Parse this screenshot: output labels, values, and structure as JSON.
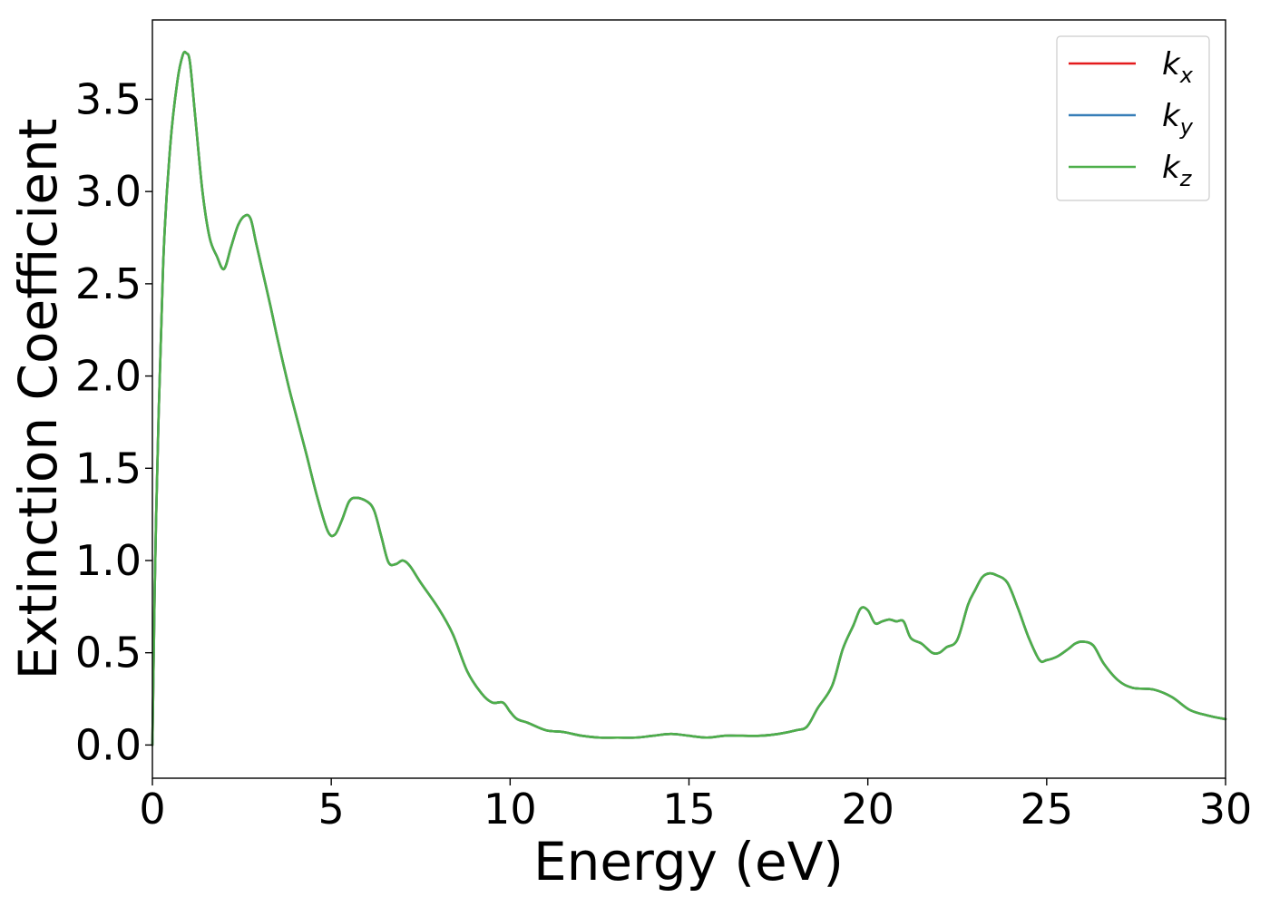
{
  "chart_data": {
    "type": "line",
    "xlabel": "Energy (eV)",
    "ylabel": "Extinction Coefficient",
    "xlim": [
      0,
      30
    ],
    "ylim": [
      -0.18,
      3.93
    ],
    "xticks": [
      0,
      5,
      10,
      15,
      20,
      25,
      30
    ],
    "xtick_labels": [
      "0",
      "5",
      "10",
      "15",
      "20",
      "25",
      "30"
    ],
    "yticks": [
      0.0,
      0.5,
      1.0,
      1.5,
      2.0,
      2.5,
      3.0,
      3.5
    ],
    "ytick_labels": [
      "0.0",
      "0.5",
      "1.0",
      "1.5",
      "2.0",
      "2.5",
      "3.0",
      "3.5"
    ],
    "grid": false,
    "legend_position": "top-right",
    "x": [
      0,
      0.1,
      0.3,
      0.5,
      0.7,
      0.85,
      0.95,
      1.05,
      1.2,
      1.4,
      1.6,
      1.8,
      2.0,
      2.2,
      2.4,
      2.6,
      2.75,
      2.9,
      3.1,
      3.3,
      3.5,
      3.8,
      4.0,
      4.3,
      4.6,
      4.9,
      5.1,
      5.3,
      5.5,
      5.7,
      6.0,
      6.2,
      6.4,
      6.6,
      6.8,
      7.0,
      7.2,
      7.5,
      8.0,
      8.4,
      8.8,
      9.2,
      9.5,
      9.8,
      10.0,
      10.2,
      10.5,
      11.0,
      11.5,
      12.0,
      12.5,
      13.0,
      13.5,
      14.0,
      14.5,
      15.0,
      15.5,
      16.0,
      16.5,
      17.0,
      17.5,
      18.0,
      18.3,
      18.6,
      19.0,
      19.3,
      19.6,
      19.8,
      20.0,
      20.2,
      20.4,
      20.6,
      20.8,
      21.0,
      21.2,
      21.5,
      21.8,
      22.0,
      22.2,
      22.5,
      22.8,
      23.0,
      23.2,
      23.4,
      23.6,
      23.9,
      24.2,
      24.5,
      24.8,
      25.0,
      25.3,
      25.6,
      25.8,
      26.0,
      26.3,
      26.6,
      27.0,
      27.4,
      28.0,
      28.5,
      29.0,
      29.5,
      30.0
    ],
    "series": [
      {
        "name": "k_x",
        "label_base": "k",
        "label_sub": "x",
        "color": "#e41a1c",
        "values": [
          0.0,
          1.2,
          2.6,
          3.25,
          3.6,
          3.74,
          3.75,
          3.7,
          3.4,
          3.0,
          2.75,
          2.65,
          2.58,
          2.7,
          2.82,
          2.87,
          2.85,
          2.72,
          2.55,
          2.38,
          2.2,
          1.95,
          1.8,
          1.58,
          1.35,
          1.16,
          1.14,
          1.22,
          1.32,
          1.34,
          1.32,
          1.27,
          1.13,
          0.99,
          0.98,
          1.0,
          0.97,
          0.88,
          0.74,
          0.6,
          0.4,
          0.28,
          0.23,
          0.23,
          0.18,
          0.14,
          0.12,
          0.08,
          0.07,
          0.05,
          0.04,
          0.04,
          0.04,
          0.05,
          0.06,
          0.05,
          0.04,
          0.05,
          0.05,
          0.05,
          0.06,
          0.08,
          0.1,
          0.2,
          0.32,
          0.52,
          0.65,
          0.74,
          0.73,
          0.66,
          0.67,
          0.68,
          0.67,
          0.67,
          0.58,
          0.55,
          0.5,
          0.5,
          0.53,
          0.57,
          0.76,
          0.84,
          0.91,
          0.93,
          0.92,
          0.88,
          0.74,
          0.58,
          0.46,
          0.46,
          0.48,
          0.52,
          0.55,
          0.56,
          0.54,
          0.44,
          0.35,
          0.31,
          0.3,
          0.26,
          0.19,
          0.16,
          0.14
        ]
      },
      {
        "name": "k_y",
        "label_base": "k",
        "label_sub": "y",
        "color": "#377eb8",
        "values": [
          0.0,
          1.2,
          2.6,
          3.25,
          3.6,
          3.74,
          3.75,
          3.7,
          3.4,
          3.0,
          2.75,
          2.65,
          2.58,
          2.7,
          2.82,
          2.87,
          2.85,
          2.72,
          2.55,
          2.38,
          2.2,
          1.95,
          1.8,
          1.58,
          1.35,
          1.16,
          1.14,
          1.22,
          1.32,
          1.34,
          1.32,
          1.27,
          1.13,
          0.99,
          0.98,
          1.0,
          0.97,
          0.88,
          0.74,
          0.6,
          0.4,
          0.28,
          0.23,
          0.23,
          0.18,
          0.14,
          0.12,
          0.08,
          0.07,
          0.05,
          0.04,
          0.04,
          0.04,
          0.05,
          0.06,
          0.05,
          0.04,
          0.05,
          0.05,
          0.05,
          0.06,
          0.08,
          0.1,
          0.2,
          0.32,
          0.52,
          0.65,
          0.74,
          0.73,
          0.66,
          0.67,
          0.68,
          0.67,
          0.67,
          0.58,
          0.55,
          0.5,
          0.5,
          0.53,
          0.57,
          0.76,
          0.84,
          0.91,
          0.93,
          0.92,
          0.88,
          0.74,
          0.58,
          0.46,
          0.46,
          0.48,
          0.52,
          0.55,
          0.56,
          0.54,
          0.44,
          0.35,
          0.31,
          0.3,
          0.26,
          0.19,
          0.16,
          0.14
        ]
      },
      {
        "name": "k_z",
        "label_base": "k",
        "label_sub": "z",
        "color": "#4daf4a",
        "values": [
          0.0,
          1.2,
          2.6,
          3.25,
          3.6,
          3.74,
          3.75,
          3.7,
          3.4,
          3.0,
          2.75,
          2.65,
          2.58,
          2.7,
          2.82,
          2.87,
          2.85,
          2.72,
          2.55,
          2.38,
          2.2,
          1.95,
          1.8,
          1.58,
          1.35,
          1.16,
          1.14,
          1.22,
          1.32,
          1.34,
          1.32,
          1.27,
          1.13,
          0.99,
          0.98,
          1.0,
          0.97,
          0.88,
          0.74,
          0.6,
          0.4,
          0.28,
          0.23,
          0.23,
          0.18,
          0.14,
          0.12,
          0.08,
          0.07,
          0.05,
          0.04,
          0.04,
          0.04,
          0.05,
          0.06,
          0.05,
          0.04,
          0.05,
          0.05,
          0.05,
          0.06,
          0.08,
          0.1,
          0.2,
          0.32,
          0.52,
          0.65,
          0.74,
          0.73,
          0.66,
          0.67,
          0.68,
          0.67,
          0.67,
          0.58,
          0.55,
          0.5,
          0.5,
          0.53,
          0.57,
          0.76,
          0.84,
          0.91,
          0.93,
          0.92,
          0.88,
          0.74,
          0.58,
          0.46,
          0.46,
          0.48,
          0.52,
          0.55,
          0.56,
          0.54,
          0.44,
          0.35,
          0.31,
          0.3,
          0.26,
          0.19,
          0.16,
          0.14
        ]
      }
    ]
  }
}
